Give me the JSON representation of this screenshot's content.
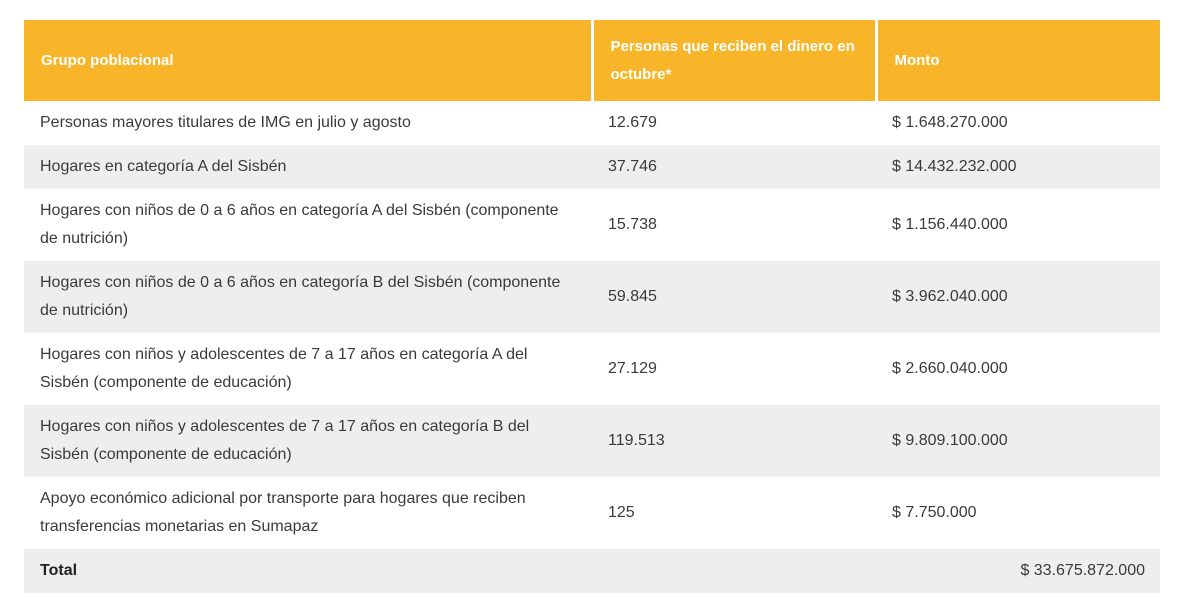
{
  "table": {
    "headers": {
      "group": "Grupo poblacional",
      "people": "Personas que reciben el dinero en octubre*",
      "amount": "Monto"
    },
    "rows": [
      {
        "group": "Personas mayores titulares de IMG en julio y agosto",
        "people": "12.679",
        "amount": "$ 1.648.270.000"
      },
      {
        "group": "Hogares en categoría A del Sisbén",
        "people": "37.746",
        "amount": "$ 14.432.232.000"
      },
      {
        "group": "Hogares con niños de 0 a 6 años en categoría A del Sisbén (componente de nutrición)",
        "people": "15.738",
        "amount": "$ 1.156.440.000"
      },
      {
        "group": "Hogares con niños de 0 a 6 años en categoría B del Sisbén (componente de nutrición)",
        "people": "59.845",
        "amount": "$ 3.962.040.000"
      },
      {
        "group": "Hogares con niños y adolescentes de 7 a 17 años en categoría A del Sisbén (componente de educación)",
        "people": "27.129",
        "amount": "$ 2.660.040.000"
      },
      {
        "group": "Hogares con niños y adolescentes de 7 a 17 años en categoría B del Sisbén (componente de educación)",
        "people": "119.513",
        "amount": "$ 9.809.100.000"
      },
      {
        "group": "Apoyo económico adicional por transporte para hogares que reciben transferencias monetarias en Sumapaz",
        "people": "125",
        "amount": "$ 7.750.000"
      }
    ],
    "total": {
      "label": "Total",
      "amount": "$ 33.675.872.000"
    }
  },
  "colors": {
    "header_bg": "#f8b52a",
    "header_text": "#ffffff",
    "stripe_bg": "#eeeeee",
    "body_text": "#3a3a3a"
  }
}
